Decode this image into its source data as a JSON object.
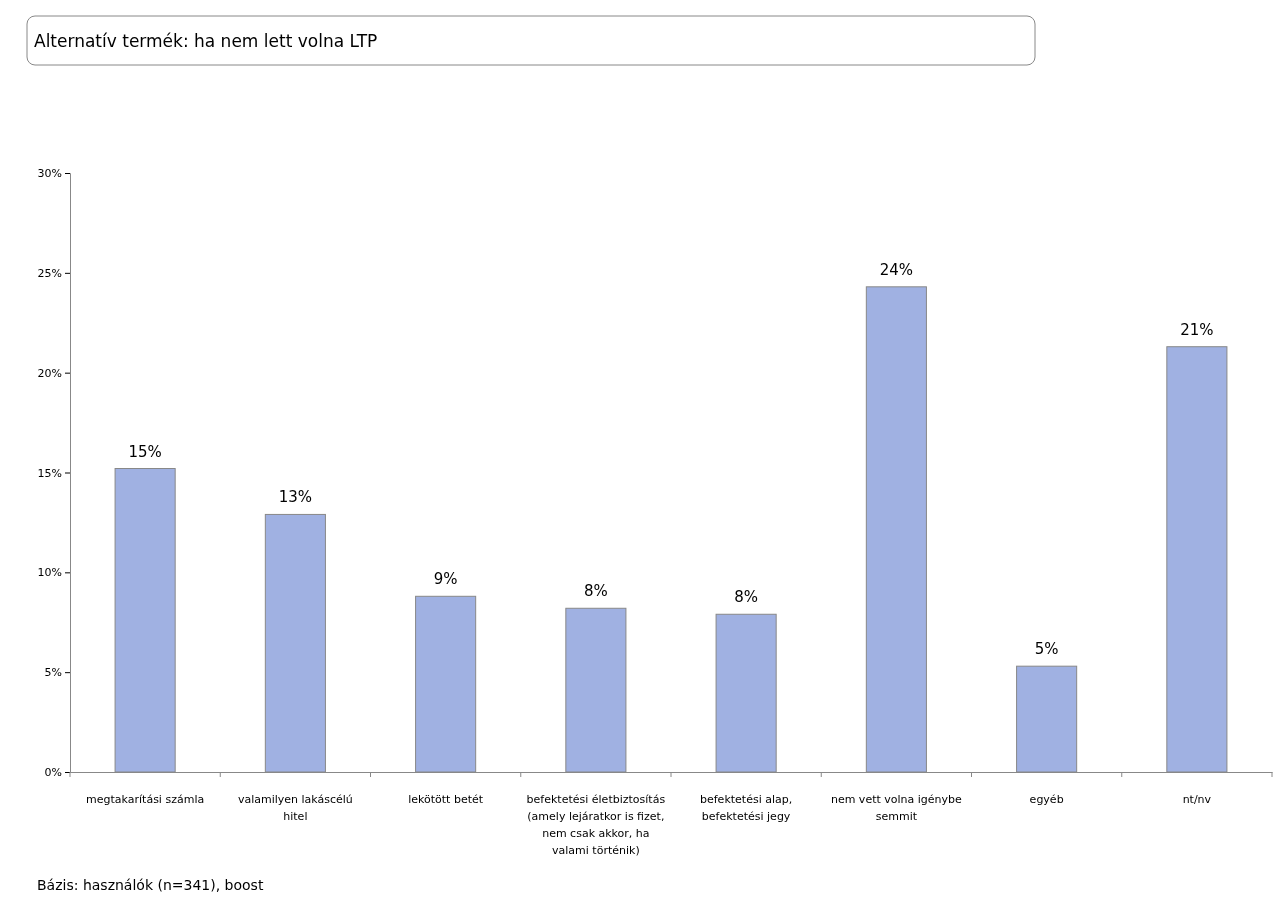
{
  "chart_data": {
    "type": "bar",
    "title": "Alternatív termék: ha nem lett volna LTP",
    "categories": [
      "megtakarítási számla",
      "valamilyen lakáscélú hitel",
      "lekötött betét",
      "befektetési életbiztosítás (amely lejáratkor is fizet, nem csak akkor, ha valami történik)",
      "befektetési alap, befektetési jegy",
      "nem vett volna igénybe semmit",
      "egyéb",
      "nt/nv"
    ],
    "values": [
      15.2,
      12.9,
      8.8,
      8.2,
      7.9,
      24.3,
      5.3,
      21.3
    ],
    "value_labels": [
      "15%",
      "13%",
      "9%",
      "8%",
      "8%",
      "24%",
      "5%",
      "21%"
    ],
    "color": "#a0b1e2",
    "ylim": [
      0,
      30
    ],
    "yticks": [
      {
        "value": 0,
        "label": "0%"
      },
      {
        "value": 5,
        "label": "5%"
      },
      {
        "value": 10,
        "label": "10%"
      },
      {
        "value": 15,
        "label": "15%"
      },
      {
        "value": 20,
        "label": "20%"
      },
      {
        "value": 25,
        "label": "25%"
      },
      {
        "value": 30,
        "label": "30%"
      }
    ],
    "annotations": [
      "Bázis: használók (n=341), boost"
    ]
  }
}
